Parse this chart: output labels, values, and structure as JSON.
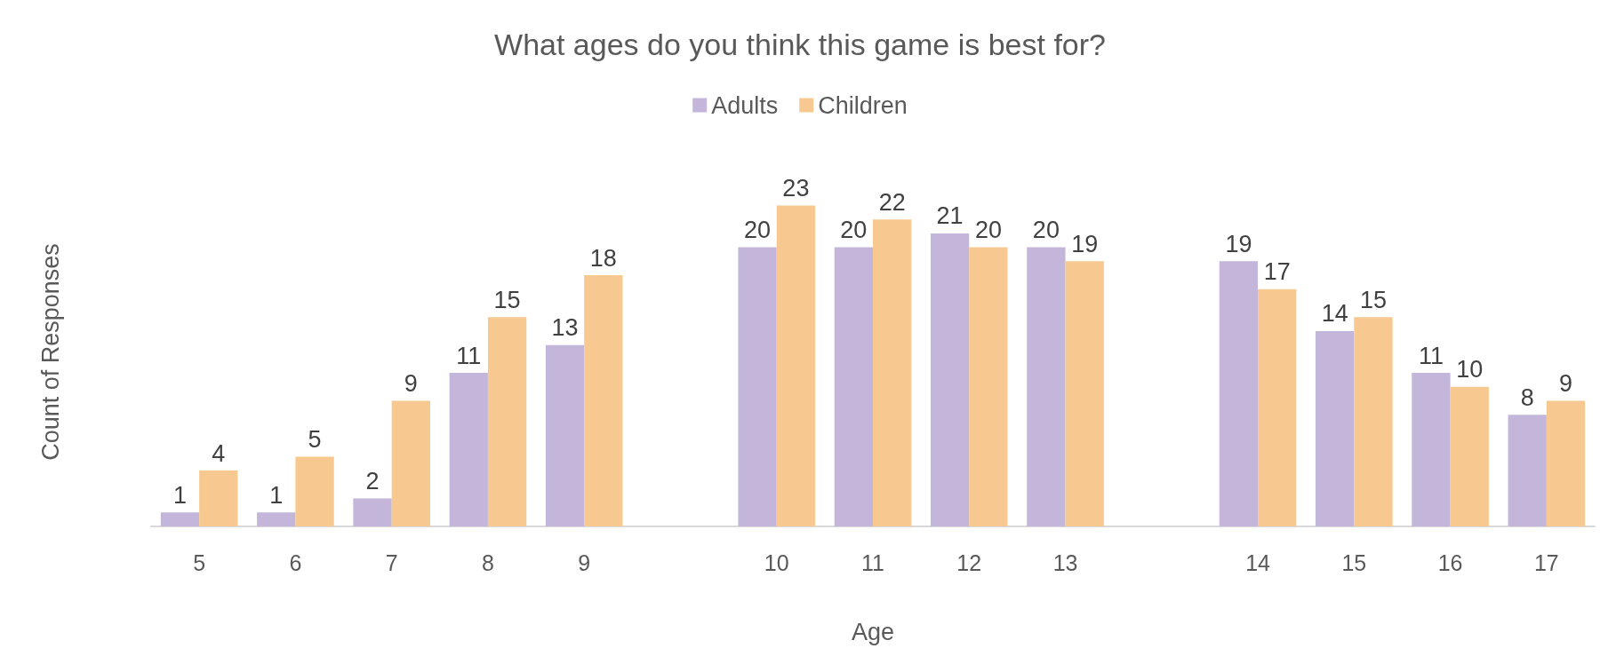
{
  "chart_data": {
    "type": "bar",
    "title": "What ages do you think this game is best for?",
    "xlabel": "Age",
    "ylabel": "Count of Responses",
    "categories": [
      "5",
      "6",
      "7",
      "8",
      "9",
      null,
      "10",
      "11",
      "12",
      "13",
      null,
      "14",
      "15",
      "16",
      "17"
    ],
    "series": [
      {
        "name": "Adults",
        "color": "#c3b6da",
        "values": [
          1,
          1,
          2,
          11,
          13,
          null,
          20,
          20,
          21,
          20,
          null,
          19,
          14,
          11,
          8
        ]
      },
      {
        "name": "Children",
        "color": "#f7c890",
        "values": [
          4,
          5,
          9,
          15,
          18,
          null,
          23,
          22,
          20,
          19,
          null,
          17,
          15,
          10,
          9
        ]
      }
    ],
    "data_labels": true,
    "legend": "top",
    "grid": false
  }
}
